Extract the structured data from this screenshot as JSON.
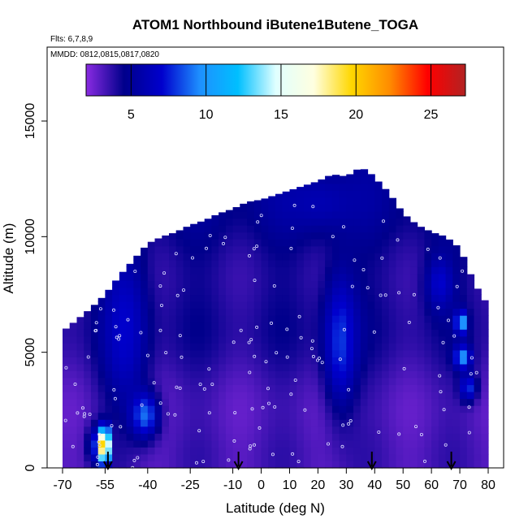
{
  "chart_data": {
    "type": "heatmap",
    "title": "ATOM1 Northbound iButene1Butene_TOGA",
    "flights_note": "Flts: 6,7,8,9",
    "dates_note": "MMDD: 0812,0815,0817,0820",
    "xlabel": "Latitude (deg N)",
    "ylabel": "Altitude (m)",
    "xlim": [
      -70,
      80
    ],
    "ylim": [
      0,
      17500
    ],
    "x_ticks": [
      "-70",
      "-55",
      "-40",
      "-25",
      "-10",
      "0",
      "10",
      "20",
      "30",
      "40",
      "50",
      "60",
      "70",
      "80"
    ],
    "y_ticks": [
      "0",
      "5000",
      "10000",
      "15000"
    ],
    "colorbar": {
      "range": [
        2,
        27.3
      ],
      "ticks": [
        "5",
        "10",
        "15",
        "20",
        "25"
      ],
      "colors": [
        "#8a2be2",
        "#00008b",
        "#0000cd",
        "#1e90ff",
        "#00bfff",
        "#e0ffff",
        "#ffffe0",
        "#ffd700",
        "#ff8c00",
        "#ff0000",
        "#b22222"
      ]
    },
    "ceiling_profile": [
      {
        "lat": -70,
        "alt": 5900
      },
      {
        "lat": -65,
        "alt": 6400
      },
      {
        "lat": -60,
        "alt": 6900
      },
      {
        "lat": -55,
        "alt": 7500
      },
      {
        "lat": -50,
        "alt": 8300
      },
      {
        "lat": -45,
        "alt": 9000
      },
      {
        "lat": -40,
        "alt": 9700
      },
      {
        "lat": -35,
        "alt": 10000
      },
      {
        "lat": -30,
        "alt": 10200
      },
      {
        "lat": -25,
        "alt": 10500
      },
      {
        "lat": -20,
        "alt": 10700
      },
      {
        "lat": -15,
        "alt": 11000
      },
      {
        "lat": -10,
        "alt": 11200
      },
      {
        "lat": -5,
        "alt": 11500
      },
      {
        "lat": 0,
        "alt": 11600
      },
      {
        "lat": 5,
        "alt": 11800
      },
      {
        "lat": 10,
        "alt": 12000
      },
      {
        "lat": 15,
        "alt": 12200
      },
      {
        "lat": 20,
        "alt": 12400
      },
      {
        "lat": 25,
        "alt": 12700
      },
      {
        "lat": 30,
        "alt": 12600
      },
      {
        "lat": 35,
        "alt": 13000
      },
      {
        "lat": 38,
        "alt": 12800
      },
      {
        "lat": 45,
        "alt": 11900
      },
      {
        "lat": 50,
        "alt": 11000
      },
      {
        "lat": 55,
        "alt": 10500
      },
      {
        "lat": 60,
        "alt": 10200
      },
      {
        "lat": 65,
        "alt": 10000
      },
      {
        "lat": 70,
        "alt": 9500
      },
      {
        "lat": 75,
        "alt": 8000
      },
      {
        "lat": 80,
        "alt": 7000
      }
    ],
    "features": [
      {
        "lat": -48,
        "alt": 6000,
        "dlat": 8,
        "dalt": 3500,
        "value": 7
      },
      {
        "lat": -41,
        "alt": 2300,
        "dlat": 5,
        "dalt": 1000,
        "value": 9
      },
      {
        "lat": -58,
        "alt": 1000,
        "dlat": 3,
        "dalt": 800,
        "value": 8
      },
      {
        "lat": -55.5,
        "alt": 1000,
        "dlat": 1.2,
        "dalt": 700,
        "value": 26
      },
      {
        "lat": -54.3,
        "alt": 1000,
        "dlat": 0.8,
        "dalt": 700,
        "value": 19
      },
      {
        "lat": 28,
        "alt": 5500,
        "dlat": 6,
        "dalt": 3000,
        "value": 8
      },
      {
        "lat": 63,
        "alt": 8000,
        "dlat": 5,
        "dalt": 1200,
        "value": 7
      },
      {
        "lat": 70.5,
        "alt": 6300,
        "dlat": 2,
        "dalt": 500,
        "value": 11
      },
      {
        "lat": 71,
        "alt": 4800,
        "dlat": 3,
        "dalt": 500,
        "value": 10
      },
      {
        "lat": 73,
        "alt": 3500,
        "dlat": 3,
        "dalt": 600,
        "value": 8
      },
      {
        "lat": 20,
        "alt": 11500,
        "dlat": 15,
        "dalt": 1200,
        "value": 6
      }
    ],
    "arrows_lat": [
      -54,
      -8,
      39,
      67
    ],
    "grid": false,
    "legend": "colorbar top"
  }
}
